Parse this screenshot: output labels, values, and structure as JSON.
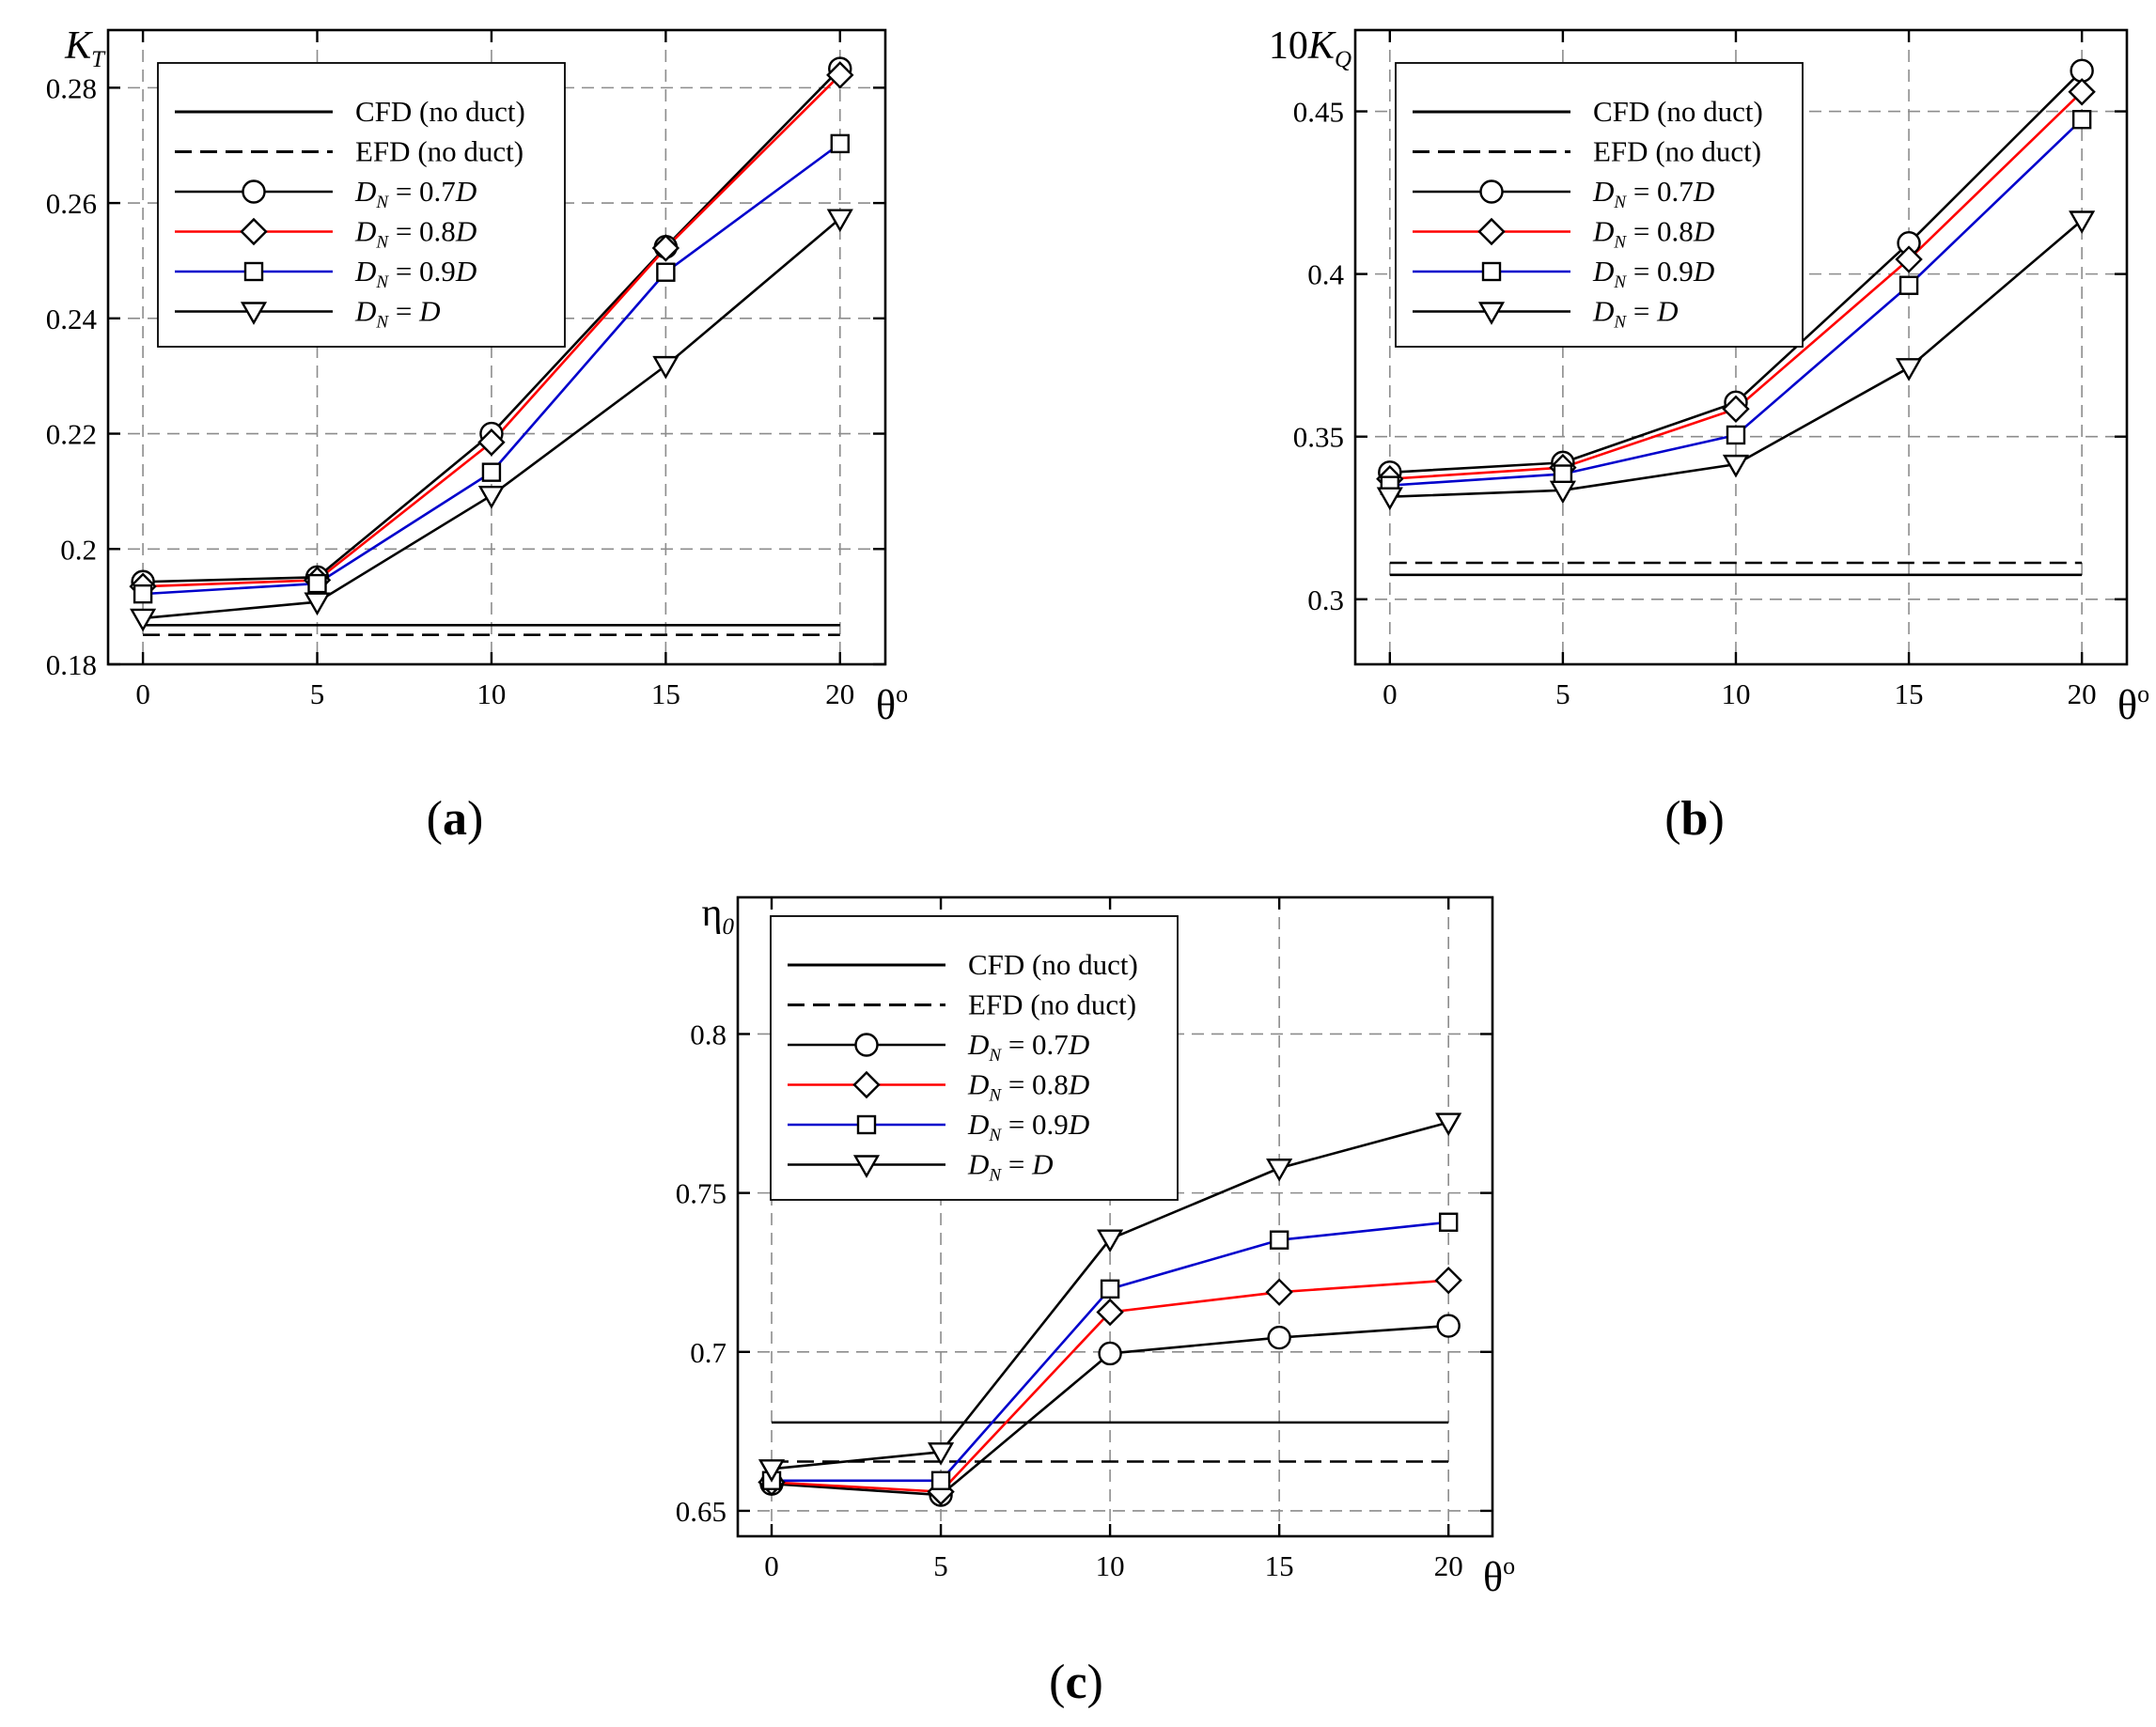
{
  "figure": {
    "panel_labels": [
      "a",
      "b",
      "c"
    ]
  },
  "legend": {
    "entries": [
      {
        "text": "CFD (no duct)",
        "var": "",
        "sub": "",
        "rest": ""
      },
      {
        "text": "EFD (no duct)",
        "var": "",
        "sub": "",
        "rest": ""
      },
      {
        "text": "",
        "var": "D",
        "sub": "N",
        "rest": " = 0.7D"
      },
      {
        "text": "",
        "var": "D",
        "sub": "N",
        "rest": " = 0.8D"
      },
      {
        "text": "",
        "var": "D",
        "sub": "N",
        "rest": " = 0.9D"
      },
      {
        "text": "",
        "var": "D",
        "sub": "N",
        "rest": " = D"
      }
    ]
  },
  "colors": {
    "axis": "#000000",
    "grid": "#8c8c8c",
    "dn07": "#000000",
    "dn08": "#ff0000",
    "dn09": "#0000cc",
    "dn10": "#000000"
  },
  "chart_data": [
    {
      "type": "line",
      "panel": "a",
      "title": "",
      "ylabel": "K_T",
      "ylabel_parts": {
        "prefix": "",
        "main": "K",
        "sub": "T"
      },
      "xlabel": "θ°",
      "xlabel_parts": {
        "main": "θ",
        "sup": "o"
      },
      "x": [
        0,
        5,
        10,
        15,
        20
      ],
      "xlim": [
        -1,
        21.3
      ],
      "ylim": [
        0.18,
        0.29
      ],
      "xticks": [
        0,
        5,
        10,
        15,
        20
      ],
      "yticks": [
        0.18,
        0.2,
        0.22,
        0.24,
        0.26,
        0.28
      ],
      "ytick_labels": [
        "0.18",
        "0.2",
        "0.22",
        "0.24",
        "0.26",
        "0.28"
      ],
      "grid": true,
      "legend_position": "top-left",
      "reference_lines": [
        {
          "name": "CFD (no duct)",
          "y": 0.1868,
          "style": "solid"
        },
        {
          "name": "EFD (no duct)",
          "y": 0.1851,
          "style": "dashed"
        }
      ],
      "series": [
        {
          "name": "D_N = 0.7D",
          "marker": "circle",
          "color": "#000000",
          "values": [
            0.1943,
            0.1951,
            0.22,
            0.2524,
            0.2833
          ]
        },
        {
          "name": "D_N = 0.8D",
          "marker": "diamond",
          "color": "#ff0000",
          "values": [
            0.1935,
            0.1946,
            0.2185,
            0.2522,
            0.2822
          ]
        },
        {
          "name": "D_N = 0.9D",
          "marker": "square",
          "color": "#0000cc",
          "values": [
            0.1922,
            0.194,
            0.2133,
            0.248,
            0.2703
          ]
        },
        {
          "name": "D_N = D",
          "marker": "triangle-down",
          "color": "#000000",
          "values": [
            0.188,
            0.1908,
            0.2093,
            0.2318,
            0.2573
          ]
        }
      ]
    },
    {
      "type": "line",
      "panel": "b",
      "title": "",
      "ylabel": "10K_Q",
      "ylabel_parts": {
        "prefix": "10",
        "main": "K",
        "sub": "Q"
      },
      "xlabel": "θ°",
      "xlabel_parts": {
        "main": "θ",
        "sup": "o"
      },
      "x": [
        0,
        5,
        10,
        15,
        20
      ],
      "xlim": [
        -1,
        21.3
      ],
      "ylim": [
        0.28,
        0.475
      ],
      "xticks": [
        0,
        5,
        10,
        15,
        20
      ],
      "yticks": [
        0.3,
        0.35,
        0.4,
        0.45
      ],
      "ytick_labels": [
        "0.3",
        "0.35",
        "0.4",
        "0.45"
      ],
      "grid": true,
      "legend_position": "top-left",
      "reference_lines": [
        {
          "name": "CFD (no duct)",
          "y": 0.3075,
          "style": "solid"
        },
        {
          "name": "EFD (no duct)",
          "y": 0.3112,
          "style": "dashed"
        }
      ],
      "series": [
        {
          "name": "D_N = 0.7D",
          "marker": "circle",
          "color": "#000000",
          "values": [
            0.339,
            0.342,
            0.3605,
            0.4095,
            0.4625
          ]
        },
        {
          "name": "D_N = 0.8D",
          "marker": "diamond",
          "color": "#ff0000",
          "values": [
            0.337,
            0.3405,
            0.3585,
            0.4045,
            0.456
          ]
        },
        {
          "name": "D_N = 0.9D",
          "marker": "square",
          "color": "#0000cc",
          "values": [
            0.335,
            0.3385,
            0.3505,
            0.3965,
            0.4475
          ]
        },
        {
          "name": "D_N = D",
          "marker": "triangle-down",
          "color": "#000000",
          "values": [
            0.3315,
            0.3335,
            0.3415,
            0.3712,
            0.4165
          ]
        }
      ]
    },
    {
      "type": "line",
      "panel": "c",
      "title": "",
      "ylabel": "η_0",
      "ylabel_parts": {
        "prefix": "",
        "main": "η",
        "sub": "0"
      },
      "xlabel": "θ°",
      "xlabel_parts": {
        "main": "θ",
        "sup": "o"
      },
      "x": [
        0,
        5,
        10,
        15,
        20
      ],
      "xlim": [
        -1,
        21.3
      ],
      "ylim": [
        0.642,
        0.843
      ],
      "xticks": [
        0,
        5,
        10,
        15,
        20
      ],
      "yticks": [
        0.65,
        0.7,
        0.75,
        0.8
      ],
      "ytick_labels": [
        "0.65",
        "0.7",
        "0.75",
        "0.8"
      ],
      "grid": true,
      "legend_position": "top-left",
      "reference_lines": [
        {
          "name": "CFD (no duct)",
          "y": 0.6778,
          "style": "solid"
        },
        {
          "name": "EFD (no duct)",
          "y": 0.6655,
          "style": "dashed"
        }
      ],
      "series": [
        {
          "name": "D_N = 0.7D",
          "marker": "circle",
          "color": "#000000",
          "values": [
            0.6585,
            0.655,
            0.6995,
            0.7045,
            0.7082
          ]
        },
        {
          "name": "D_N = 0.8D",
          "marker": "diamond",
          "color": "#ff0000",
          "values": [
            0.659,
            0.656,
            0.7125,
            0.7188,
            0.7225
          ]
        },
        {
          "name": "D_N = 0.9D",
          "marker": "square",
          "color": "#0000cc",
          "values": [
            0.6595,
            0.6595,
            0.7198,
            0.7352,
            0.7408
          ]
        },
        {
          "name": "D_N = D",
          "marker": "triangle-down",
          "color": "#000000",
          "values": [
            0.6632,
            0.6685,
            0.7355,
            0.7578,
            0.7722
          ]
        }
      ]
    }
  ]
}
